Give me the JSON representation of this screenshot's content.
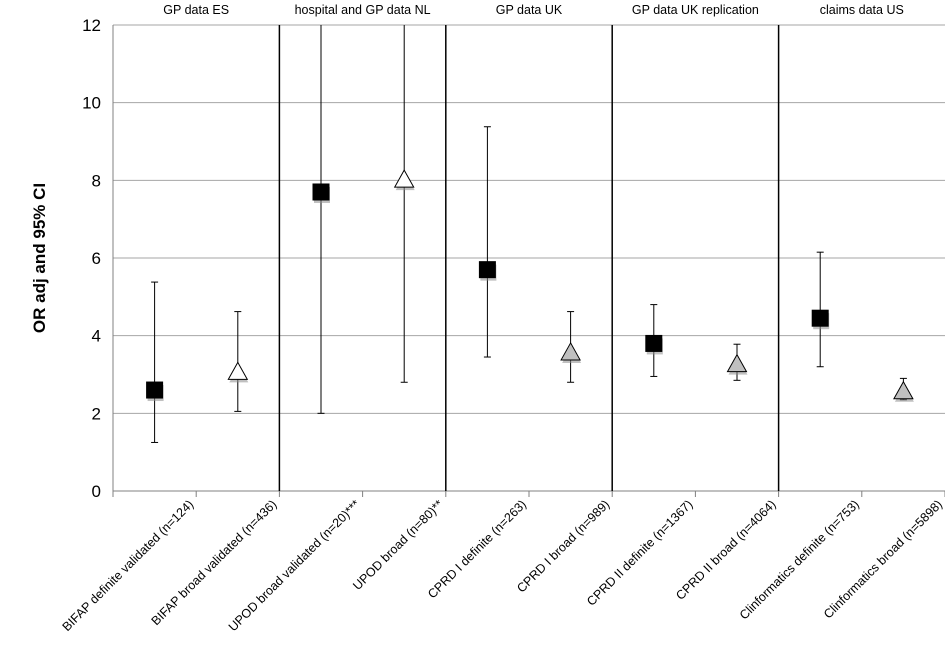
{
  "chart_data": {
    "type": "scatter",
    "ylabel": "OR adj and 95% CI",
    "xlabel": "",
    "ylim": [
      0,
      12
    ],
    "yticks": [
      0,
      2,
      4,
      6,
      8,
      10,
      12
    ],
    "grid": true,
    "groups": [
      {
        "label": "GP data ES",
        "categories": [
          0,
          1
        ]
      },
      {
        "label": "hospital and GP data NL",
        "categories": [
          2,
          3
        ]
      },
      {
        "label": "GP data UK",
        "categories": [
          4,
          5
        ]
      },
      {
        "label": "GP data UK replication",
        "categories": [
          6,
          7
        ]
      },
      {
        "label": "claims data US",
        "categories": [
          8,
          9
        ]
      }
    ],
    "categories": [
      "BIFAP definite validated (n=124)",
      "BIFAP broad validated (n=436)",
      "UPOD broad validated (n=20)***",
      "UPOD broad (n=80)**",
      "CPRD I definite (n=263)",
      "CPRD I broad (n=989)",
      "CPRD II definite (n=1367)",
      "CPRD II broad (n=4064)",
      "Clinformatics definite (n=753)",
      "Clinformatics broad (n=5898)"
    ],
    "points": [
      {
        "or": 2.6,
        "ci_low": 1.25,
        "ci_high": 5.38,
        "marker": "square",
        "fill": "#000000"
      },
      {
        "or": 3.05,
        "ci_low": 2.05,
        "ci_high": 4.62,
        "marker": "triangle",
        "fill": "#ffffff"
      },
      {
        "or": 7.7,
        "ci_low": 2.0,
        "ci_high": 12.0,
        "marker": "square",
        "fill": "#000000"
      },
      {
        "or": 8.0,
        "ci_low": 2.8,
        "ci_high": 12.0,
        "marker": "triangle",
        "fill": "#ffffff"
      },
      {
        "or": 5.7,
        "ci_low": 3.45,
        "ci_high": 9.38,
        "marker": "square",
        "fill": "#000000"
      },
      {
        "or": 3.55,
        "ci_low": 2.8,
        "ci_high": 4.62,
        "marker": "triangle",
        "fill": "#c0c0c0"
      },
      {
        "or": 3.8,
        "ci_low": 2.95,
        "ci_high": 4.8,
        "marker": "square",
        "fill": "#000000"
      },
      {
        "or": 3.25,
        "ci_low": 2.85,
        "ci_high": 3.78,
        "marker": "triangle",
        "fill": "#c0c0c0"
      },
      {
        "or": 4.45,
        "ci_low": 3.2,
        "ci_high": 6.15,
        "marker": "square",
        "fill": "#000000"
      },
      {
        "or": 2.55,
        "ci_low": 2.35,
        "ci_high": 2.9,
        "marker": "triangle",
        "fill": "#c0c0c0"
      }
    ]
  }
}
